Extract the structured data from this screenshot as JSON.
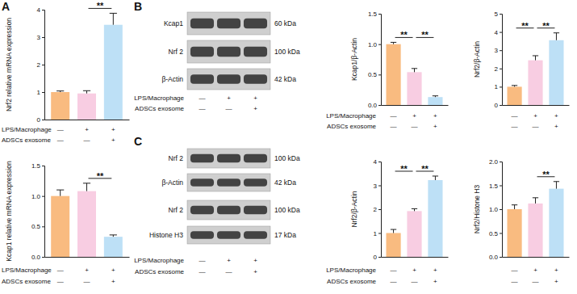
{
  "panel_labels": [
    "A",
    "B",
    "C"
  ],
  "chart_data": [
    {
      "type": "bar",
      "y_label": "Nrf2 relative mRNA expression",
      "categories": [
        null,
        null,
        null
      ],
      "values": [
        1.0,
        0.95,
        3.45
      ],
      "errors": [
        0.04,
        0.1,
        0.42
      ],
      "colors": [
        "#F9BB80",
        "#F8CDE2",
        "#BDE0F6"
      ],
      "ylim": [
        0,
        4
      ],
      "yticks": [
        0,
        1,
        2,
        3,
        4
      ],
      "significance": [
        {
          "from": 1,
          "to": 2,
          "label": "**"
        }
      ],
      "conditions": [
        {
          "label": "LPS/Macrophage",
          "marks": [
            "—",
            "+",
            "+"
          ]
        },
        {
          "label": "ADSCs exosome",
          "marks": [
            "—",
            "—",
            "+"
          ]
        }
      ]
    },
    {
      "type": "bar",
      "y_label": "Kcap1 relative mRNA expression",
      "categories": [
        null,
        null,
        null
      ],
      "values": [
        1.0,
        1.08,
        0.33
      ],
      "errors": [
        0.1,
        0.13,
        0.03
      ],
      "colors": [
        "#F9BB80",
        "#F8CDE2",
        "#BDE0F6"
      ],
      "ylim": [
        0,
        1.5
      ],
      "yticks": [
        {
          "value": 0,
          "label": "0.0"
        },
        {
          "value": 0.5,
          "label": "0.5"
        },
        {
          "value": 1,
          "label": "1.0"
        },
        {
          "value": 1.5,
          "label": "1.5"
        }
      ],
      "significance": [
        {
          "from": 1,
          "to": 2,
          "label": "**"
        }
      ],
      "conditions": [
        {
          "label": "LPS/Macrophage",
          "marks": [
            "—",
            "+",
            "+"
          ]
        },
        {
          "label": "ADSCs exosome",
          "marks": [
            "—",
            "—",
            "+"
          ]
        }
      ]
    },
    {
      "type": "bar",
      "y_label": "Kcap1/β-Actin",
      "categories": [
        null,
        null,
        null
      ],
      "values": [
        1.0,
        0.54,
        0.13
      ],
      "errors": [
        0.03,
        0.06,
        0.02
      ],
      "colors": [
        "#F9BB80",
        "#F8CDE2",
        "#BDE0F6"
      ],
      "ylim": [
        0,
        1.5
      ],
      "yticks": [
        {
          "value": 0,
          "label": "0.0"
        },
        {
          "value": 0.5,
          "label": "0.5"
        },
        {
          "value": 1,
          "label": "1.0"
        },
        {
          "value": 1.5,
          "label": "1.5"
        }
      ],
      "significance": [
        {
          "from": 0,
          "to": 1,
          "label": "**"
        },
        {
          "from": 1,
          "to": 2,
          "label": "**"
        }
      ],
      "conditions": [
        {
          "label": "LPS/Macrophage",
          "marks": [
            "—",
            "+",
            "+"
          ]
        },
        {
          "label": "ADSCs exosome",
          "marks": [
            "—",
            "—",
            "+"
          ]
        }
      ]
    },
    {
      "type": "bar",
      "y_label": "Nrf2/β-Actin",
      "categories": [
        null,
        null,
        null
      ],
      "values": [
        1.0,
        2.45,
        3.55
      ],
      "errors": [
        0.07,
        0.25,
        0.4
      ],
      "colors": [
        "#F9BB80",
        "#F8CDE2",
        "#BDE0F6"
      ],
      "ylim": [
        0,
        5
      ],
      "yticks": [
        0,
        1,
        2,
        3,
        4,
        5
      ],
      "significance": [
        {
          "from": 0,
          "to": 1,
          "label": "**"
        },
        {
          "from": 1,
          "to": 2,
          "label": "**"
        }
      ],
      "conditions": [
        {
          "marks": [
            "—",
            "+",
            "+"
          ]
        },
        {
          "marks": [
            "—",
            "—",
            "+"
          ]
        }
      ]
    },
    {
      "type": "bar",
      "y_label": "Nrf2/β-Actin",
      "categories": [
        null,
        null,
        null
      ],
      "values": [
        1.0,
        1.92,
        3.22
      ],
      "errors": [
        0.15,
        0.1,
        0.17
      ],
      "colors": [
        "#F9BB80",
        "#F8CDE2",
        "#BDE0F6"
      ],
      "ylim": [
        0,
        4
      ],
      "yticks": [
        0,
        1,
        2,
        3,
        4
      ],
      "significance": [
        {
          "from": 0,
          "to": 1,
          "label": "**"
        },
        {
          "from": 1,
          "to": 2,
          "label": "**"
        }
      ],
      "conditions": [
        {
          "label": "LPS/Macrophage",
          "marks": [
            "—",
            "+",
            "+"
          ]
        },
        {
          "label": "ADSCs exosome",
          "marks": [
            "—",
            "—",
            "+"
          ]
        }
      ]
    },
    {
      "type": "bar",
      "y_label": "Nrf2/Histone H3",
      "categories": [
        null,
        null,
        null
      ],
      "values": [
        1.0,
        1.12,
        1.43
      ],
      "errors": [
        0.09,
        0.12,
        0.15
      ],
      "colors": [
        "#F9BB80",
        "#F8CDE2",
        "#BDE0F6"
      ],
      "ylim": [
        0,
        2
      ],
      "yticks": [
        {
          "value": 0,
          "label": "0.0"
        },
        {
          "value": 0.5,
          "label": "0.5"
        },
        {
          "value": 1,
          "label": "1.0"
        },
        {
          "value": 1.5,
          "label": "1.5"
        },
        {
          "value": 2,
          "label": "2.0"
        }
      ],
      "significance": [
        {
          "from": 1,
          "to": 2,
          "label": "**"
        }
      ],
      "conditions": [
        {
          "marks": [
            "—",
            "+",
            "+"
          ]
        },
        {
          "marks": [
            "—",
            "—",
            "+"
          ]
        }
      ]
    }
  ],
  "blots": [
    {
      "rows": [
        {
          "protein": "Kcap1",
          "size": "60 kDa"
        },
        {
          "protein": "Nrf 2",
          "size": "100 kDa"
        },
        {
          "protein": "β-Actin",
          "size": "42 kDa"
        }
      ],
      "conditions": [
        {
          "label": "LPS/Macrophage",
          "marks": [
            "—",
            "+",
            "+"
          ]
        },
        {
          "label": "ADSCs exosome",
          "marks": [
            "—",
            "—",
            "+"
          ]
        }
      ]
    },
    {
      "rows": [
        {
          "protein": "Nrf 2",
          "size": "100 kDa"
        },
        {
          "protein": "β-Actin",
          "size": "42 kDa"
        },
        {
          "protein": "Nrf 2",
          "size": "100 kDa"
        },
        {
          "protein": "Histone H3",
          "size": "17 kDa"
        }
      ],
      "conditions": [
        {
          "label": "LPS/Macrophage",
          "marks": [
            "—",
            "+",
            "+"
          ]
        },
        {
          "label": "ADSCs exosome",
          "marks": [
            "—",
            "—",
            "+"
          ]
        }
      ]
    }
  ]
}
